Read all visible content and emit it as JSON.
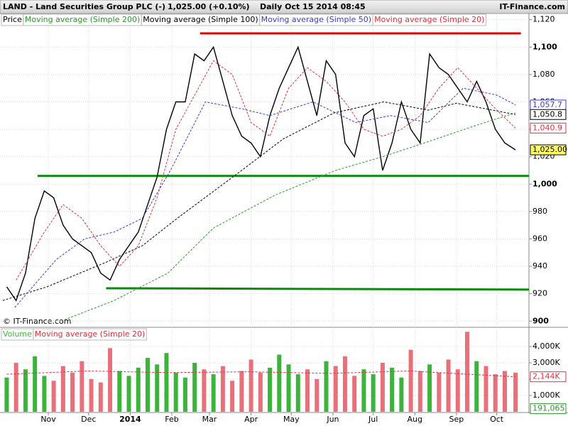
{
  "chart_data": [
    {
      "type": "line",
      "title": "LAND - Land Securities Group PLC (-)",
      "quote": "1,025.00 (+0.10%)",
      "timestamp": "Daily  Oct 15 2014 08:45",
      "source": "IT-Finance.com",
      "copyright": "© IT-Finance.com",
      "x": [
        0,
        7,
        14,
        21,
        28,
        35,
        42,
        49,
        56,
        63,
        70,
        77,
        84,
        91,
        98,
        105,
        112,
        119,
        126,
        133,
        140,
        147,
        154,
        161,
        168,
        175,
        182,
        189,
        196,
        203,
        210,
        217,
        224,
        231,
        238,
        245,
        252,
        259,
        266,
        273,
        280,
        287,
        294,
        301,
        308,
        315,
        322,
        329,
        336,
        343,
        350,
        357,
        364,
        371,
        379
      ],
      "xlim": [
        -5,
        389
      ],
      "xticks": [
        {
          "value": 31,
          "label": "Nov"
        },
        {
          "value": 61,
          "label": "Dec"
        },
        {
          "value": 92,
          "label": "2014"
        },
        {
          "value": 123,
          "label": "Feb"
        },
        {
          "value": 151,
          "label": "Mar"
        },
        {
          "value": 182,
          "label": "Apr"
        },
        {
          "value": 212,
          "label": "May"
        },
        {
          "value": 243,
          "label": "Jun"
        },
        {
          "value": 273,
          "label": "Jul"
        },
        {
          "value": 304,
          "label": "Aug"
        },
        {
          "value": 335,
          "label": "Sep"
        },
        {
          "value": 365,
          "label": "Oct"
        }
      ],
      "ylim": [
        896,
        1124
      ],
      "yticks": [
        900,
        920,
        940,
        960,
        980,
        {
          "value": 1000,
          "label": "1,000"
        },
        {
          "value": 1020,
          "label": "1,020"
        },
        {
          "value": 1040,
          "label": "1,040"
        },
        {
          "value": 1060,
          "label": "1,060"
        },
        {
          "value": 1080,
          "label": "1,080"
        },
        {
          "value": 1100,
          "label": "1,100"
        },
        {
          "value": 1120,
          "label": "1,120"
        }
      ],
      "grid": true,
      "series": [
        {
          "name": "Price",
          "color": "#000000",
          "values": [
            925,
            915,
            935,
            975,
            995,
            990,
            970,
            960,
            955,
            950,
            935,
            930,
            945,
            955,
            965,
            985,
            1005,
            1040,
            1060,
            1060,
            1095,
            1090,
            1100,
            1075,
            1050,
            1035,
            1030,
            1020,
            1050,
            1070,
            1085,
            1100,
            1075,
            1050,
            1090,
            1080,
            1030,
            1020,
            1050,
            1055,
            1010,
            1030,
            1060,
            1040,
            1030,
            1095,
            1085,
            1080,
            1070,
            1060,
            1075,
            1060,
            1040,
            1030,
            1025
          ]
        },
        {
          "name": "Moving average (Simple 200)",
          "color": "#2a9a2a",
          "x": [
            43,
            80,
            120,
            154,
            200,
            245,
            280,
            314,
            350,
            379
          ],
          "values": [
            901,
            915,
            935,
            968,
            992,
            1010,
            1020,
            1031,
            1043,
            1052
          ]
        },
        {
          "name": "Moving average (Simple 100)",
          "color": "#000000",
          "x": [
            -3,
            30,
            74,
            101,
            127,
            175,
            206,
            244,
            281,
            314,
            335,
            379
          ],
          "values": [
            915,
            925,
            943,
            955,
            975,
            1010,
            1033,
            1052,
            1060,
            1054,
            1059,
            1050.8
          ]
        },
        {
          "name": "Moving average (Simple 50)",
          "color": "#3a3ad8",
          "x": [
            6,
            37,
            58,
            80,
            101,
            122,
            148,
            175,
            196,
            228,
            260,
            286,
            314,
            340,
            365,
            379
          ],
          "values": [
            910,
            945,
            960,
            965,
            975,
            1010,
            1060,
            1055,
            1050,
            1060,
            1045,
            1050,
            1045,
            1070,
            1065,
            1057.7
          ]
        },
        {
          "name": "Moving average (Simple 20)",
          "color": "#e0303c",
          "x": [
            7,
            28,
            42,
            56,
            70,
            84,
            98,
            112,
            126,
            140,
            154,
            168,
            182,
            196,
            210,
            224,
            238,
            252,
            266,
            280,
            294,
            308,
            322,
            336,
            350,
            364,
            379
          ],
          "values": [
            930,
            965,
            985,
            975,
            955,
            940,
            955,
            990,
            1040,
            1065,
            1090,
            1080,
            1045,
            1035,
            1070,
            1085,
            1075,
            1060,
            1040,
            1035,
            1040,
            1050,
            1070,
            1085,
            1070,
            1055,
            1040.9
          ]
        }
      ],
      "reference_lines": [
        {
          "color": "#e00000",
          "x": [
            144,
            383
          ],
          "y": [
            1110,
            1110
          ]
        },
        {
          "color": "#0a8a0a",
          "x": [
            23,
            389
          ],
          "y": [
            1006,
            1006
          ]
        },
        {
          "color": "#0a8a0a",
          "x": [
            74,
            389
          ],
          "y": [
            924,
            923
          ]
        }
      ],
      "price_labels": [
        {
          "value": 1057.7,
          "label": "1,057.7",
          "color": "#3a3ad8",
          "background": "#ffffff"
        },
        {
          "value": 1050.8,
          "label": "1,050.8",
          "color": "#000000",
          "background": "#ffffff"
        },
        {
          "value": 1040.9,
          "label": "1,040.9",
          "color": "#e0303c",
          "background": "#ffffff"
        },
        {
          "value": 1025,
          "label": "1,025.00",
          "color": "#000000",
          "background": "#ffff66"
        }
      ]
    },
    {
      "type": "bar",
      "x": [
        0,
        7,
        14,
        21,
        28,
        35,
        42,
        49,
        56,
        63,
        70,
        77,
        84,
        91,
        98,
        105,
        112,
        119,
        126,
        133,
        140,
        147,
        154,
        161,
        168,
        175,
        182,
        189,
        196,
        203,
        210,
        217,
        224,
        231,
        238,
        245,
        252,
        259,
        266,
        273,
        280,
        287,
        294,
        301,
        308,
        315,
        322,
        329,
        336,
        343,
        350,
        357,
        364,
        371,
        379
      ],
      "xlim": [
        -5,
        389
      ],
      "ylim": [
        0,
        5130
      ],
      "yticks": [
        {
          "value": 1000,
          "label": "1,000K"
        },
        {
          "value": 2000,
          "label": "2,000K"
        },
        {
          "value": 3000,
          "label": "3,000K"
        },
        {
          "value": 4000,
          "label": "4,000K"
        }
      ],
      "series": [
        {
          "name": "Volume",
          "color": "#3cb43c",
          "values": [
            2100,
            3000,
            2600,
            3400,
            2200,
            1900,
            2800,
            2400,
            3100,
            2000,
            1800,
            3900,
            2500,
            2200,
            2700,
            3300,
            2900,
            3600,
            2400,
            2100,
            3000,
            2600,
            2300,
            2800,
            1900,
            2500,
            3200,
            2400,
            2700,
            3500,
            2900,
            2300,
            2600,
            2000,
            3100,
            2800,
            3400,
            2200,
            2600,
            2300,
            3000,
            2700,
            2100,
            3800,
            2500,
            2900,
            2400,
            3200,
            2600,
            4900,
            3100,
            2800,
            2300,
            2500,
            2400
          ]
        },
        {
          "name": "Moving average (Simple 20)",
          "color": "#e0303c",
          "x": [
            0,
            60,
            120,
            180,
            240,
            300,
            379
          ],
          "values": [
            2300,
            2500,
            2400,
            2450,
            2350,
            2500,
            2144
          ]
        }
      ],
      "price_labels": [
        {
          "value": 2144,
          "label": "2,144K",
          "color": "#e0303c",
          "background": "#ffffff"
        },
        {
          "value": 191.065,
          "label": "191,065",
          "color": "#2a9a2a",
          "background": "#ffffff"
        }
      ]
    }
  ]
}
